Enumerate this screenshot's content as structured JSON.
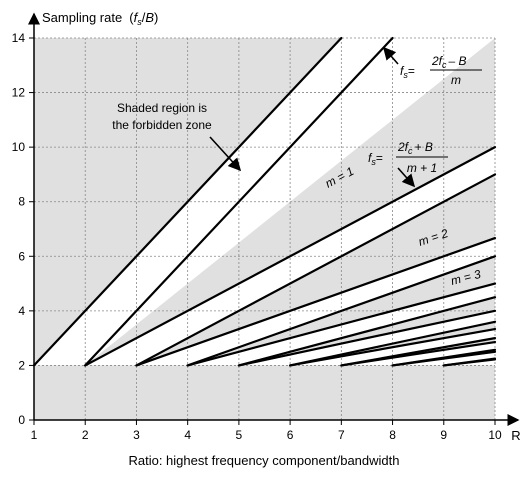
{
  "chart_data": {
    "type": "line",
    "ylabel_main": "Sampling rate",
    "ylabel_paren_open": "(",
    "ylabel_fs": "f",
    "ylabel_fs_sub": "s",
    "ylabel_slash": "/",
    "ylabel_B": "B",
    "ylabel_paren_close": ")",
    "xlabel": "Ratio: highest frequency component/bandwidth",
    "x_axis_symbol": "R",
    "xlim": [
      1,
      10
    ],
    "ylim": [
      0,
      14
    ],
    "x_ticks": [
      "1",
      "2",
      "3",
      "4",
      "5",
      "6",
      "7",
      "8",
      "9",
      "10"
    ],
    "y_ticks": [
      "0",
      "2",
      "4",
      "6",
      "8",
      "10",
      "12",
      "14"
    ],
    "grid": true,
    "m_values": [
      0,
      1,
      2,
      3,
      4,
      5,
      6,
      7,
      8,
      9
    ],
    "annotations": {
      "forbidden_line1": "Shaded region is",
      "forbidden_line2": "the forbidden zone",
      "m1": "m = 1",
      "m2": "m = 2",
      "m3": "m = 3",
      "f1_lhs": "f",
      "f1_lhs_sub": "s",
      "f1_eq": "=",
      "f1_num": "2f",
      "f1_num_sub": "c",
      "f1_num_rest": "– B",
      "f1_den": "m",
      "f2_lhs": "f",
      "f2_lhs_sub": "s",
      "f2_eq": "=",
      "f2_num": "2f",
      "f2_num_sub": "c",
      "f2_num_rest": "+ B",
      "f2_den": "m + 1"
    }
  }
}
